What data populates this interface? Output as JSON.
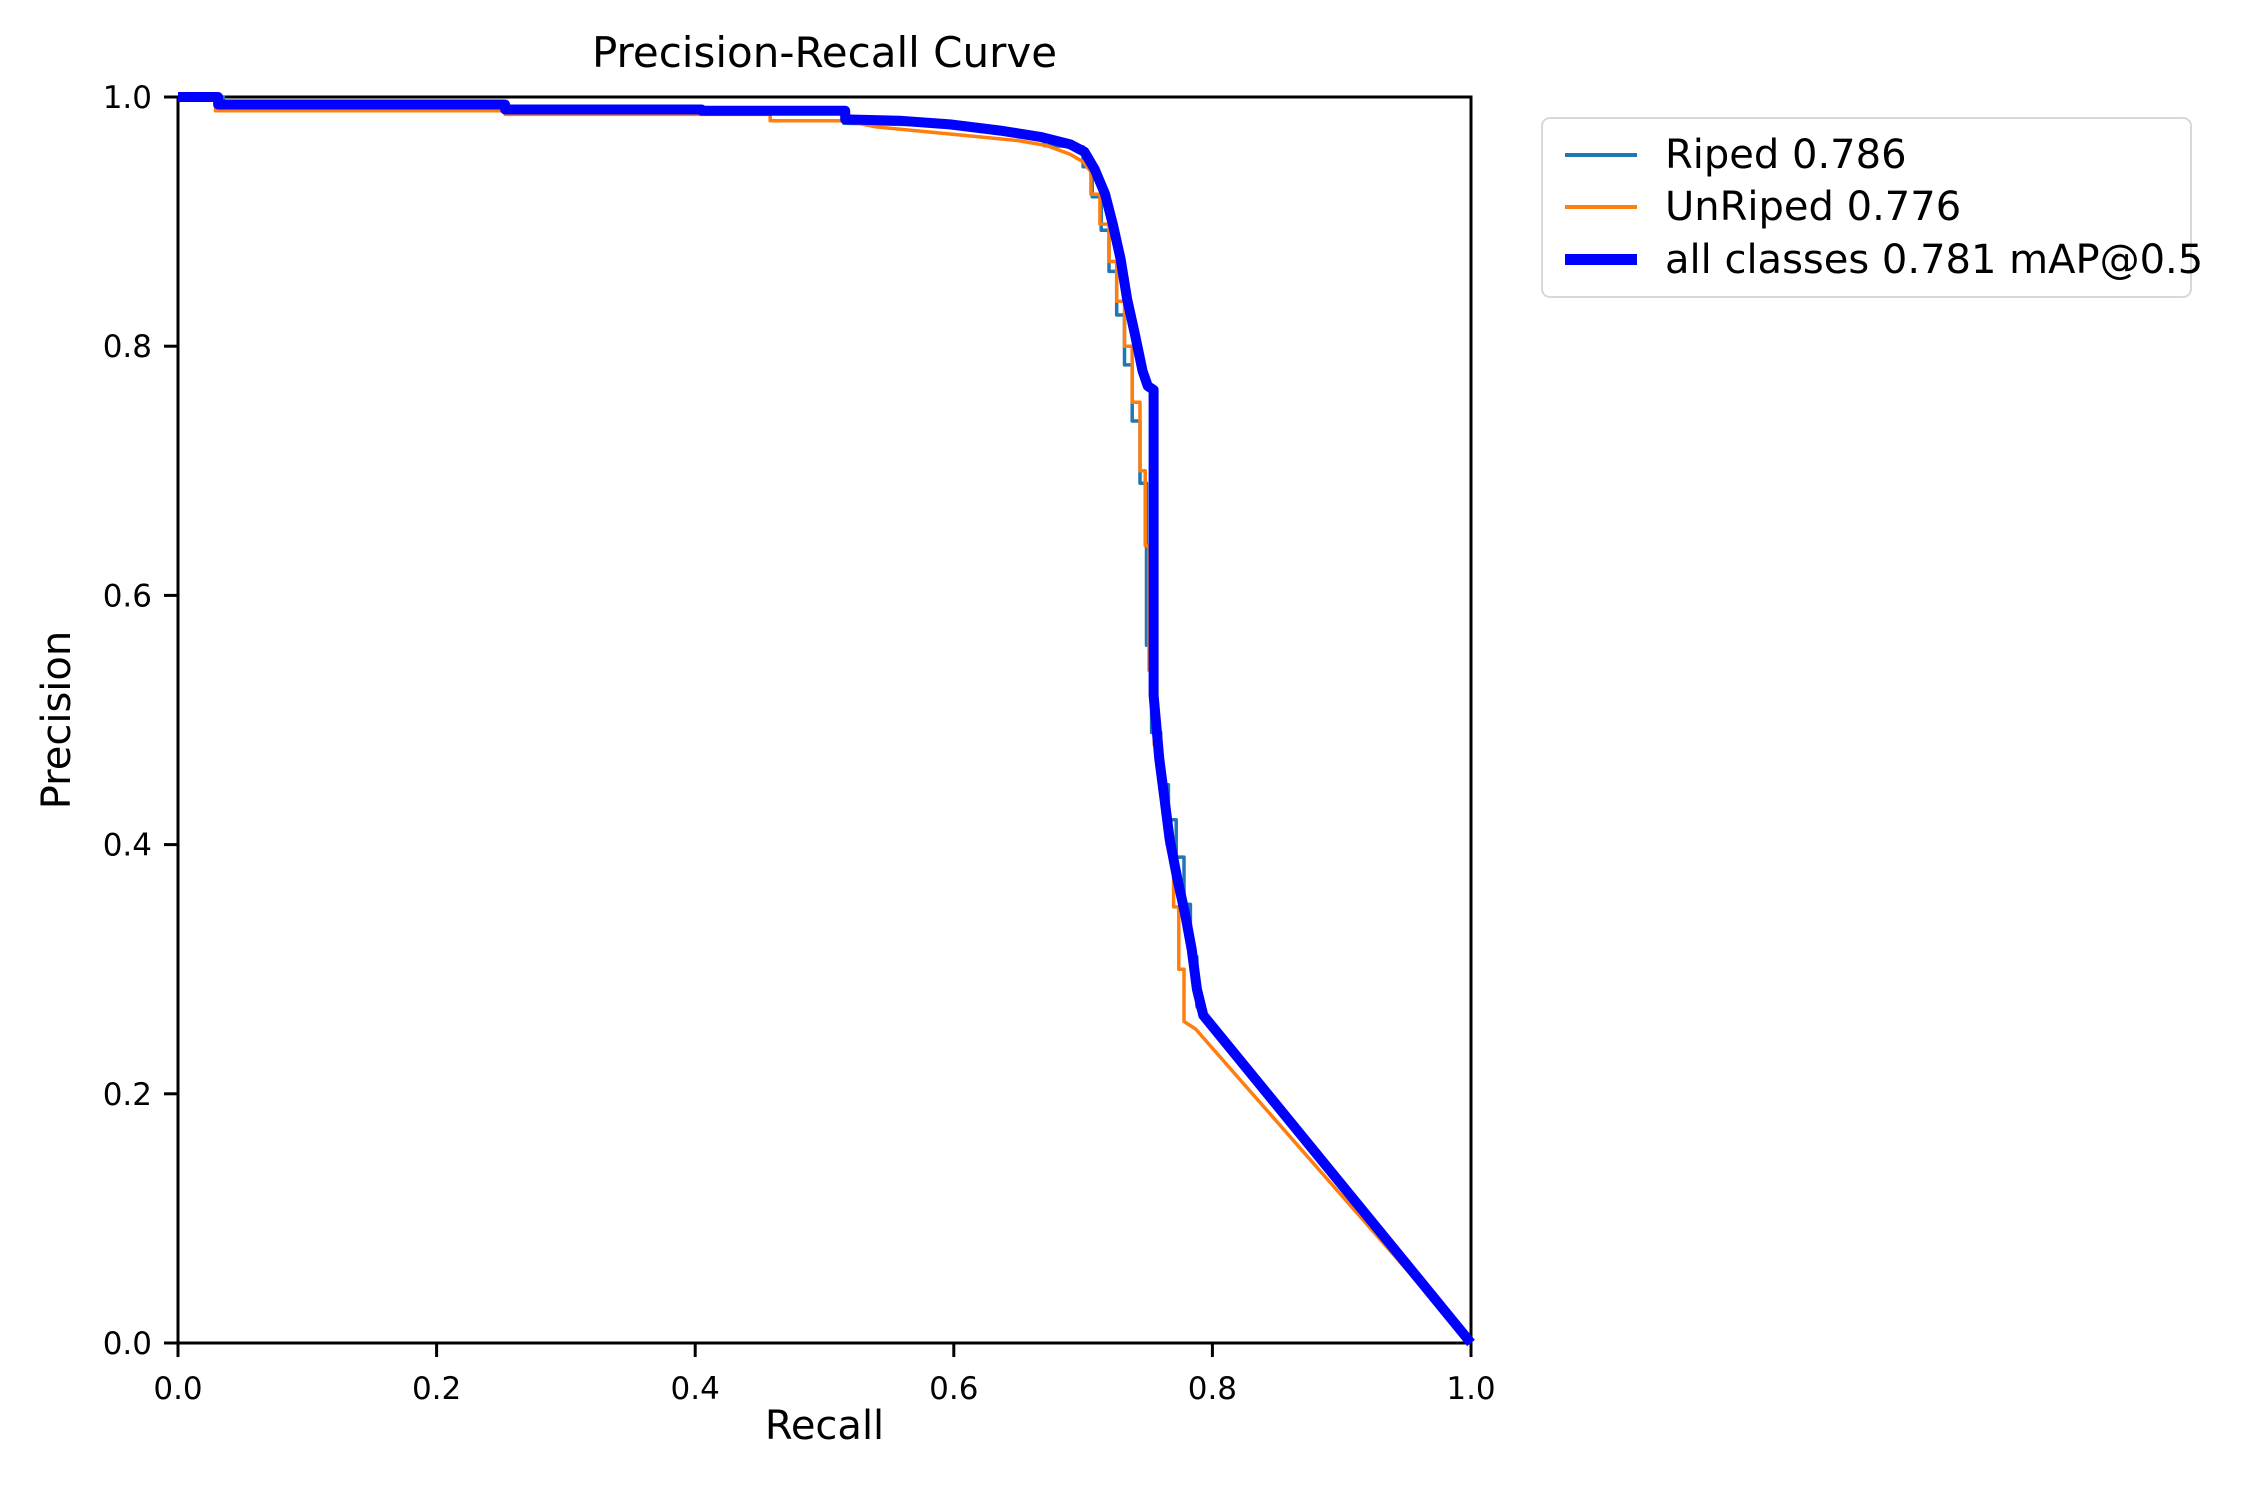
{
  "chart_data": {
    "type": "line",
    "title": "Precision-Recall Curve",
    "xlabel": "Recall",
    "ylabel": "Precision",
    "xlim": [
      0.0,
      1.0
    ],
    "ylim": [
      0.0,
      1.0
    ],
    "grid": false,
    "legend_position": "upper right, outside axes",
    "axis_color": "#000000",
    "xticks": [
      "0.0",
      "0.2",
      "0.4",
      "0.6",
      "0.8",
      "1.0"
    ],
    "yticks": [
      "0.0",
      "0.2",
      "0.4",
      "0.6",
      "0.8",
      "1.0"
    ],
    "legend": {
      "items": [
        {
          "label": "Riped 0.786",
          "color": "#1f77b4",
          "thickness": 4
        },
        {
          "label": "UnRiped 0.776",
          "color": "#ff7f0e",
          "thickness": 4
        },
        {
          "label": "all classes 0.781 mAP@0.5",
          "color": "#0000ff",
          "thickness": 11
        }
      ]
    },
    "series": [
      {
        "id": "riped",
        "name": "Riped",
        "ap": 0.786,
        "color": "#1f77b4",
        "width": 3.5,
        "points": [
          [
            0.0,
            1.0
          ],
          [
            0.035,
            1.0
          ],
          [
            0.035,
            0.993
          ],
          [
            0.253,
            0.993
          ],
          [
            0.253,
            0.991
          ],
          [
            0.46,
            0.991
          ],
          [
            0.46,
            0.989
          ],
          [
            0.515,
            0.989
          ],
          [
            0.515,
            0.979
          ],
          [
            0.56,
            0.978
          ],
          [
            0.6,
            0.977
          ],
          [
            0.636,
            0.972
          ],
          [
            0.67,
            0.969
          ],
          [
            0.67,
            0.961
          ],
          [
            0.7,
            0.96
          ],
          [
            0.7,
            0.944
          ],
          [
            0.707,
            0.944
          ],
          [
            0.707,
            0.92
          ],
          [
            0.714,
            0.92
          ],
          [
            0.714,
            0.893
          ],
          [
            0.72,
            0.893
          ],
          [
            0.72,
            0.86
          ],
          [
            0.726,
            0.86
          ],
          [
            0.726,
            0.825
          ],
          [
            0.732,
            0.825
          ],
          [
            0.732,
            0.785
          ],
          [
            0.738,
            0.785
          ],
          [
            0.738,
            0.74
          ],
          [
            0.744,
            0.74
          ],
          [
            0.744,
            0.69
          ],
          [
            0.749,
            0.69
          ],
          [
            0.749,
            0.56
          ],
          [
            0.753,
            0.56
          ],
          [
            0.753,
            0.49
          ],
          [
            0.76,
            0.49
          ],
          [
            0.76,
            0.448
          ],
          [
            0.766,
            0.448
          ],
          [
            0.766,
            0.42
          ],
          [
            0.772,
            0.42
          ],
          [
            0.772,
            0.39
          ],
          [
            0.778,
            0.39
          ],
          [
            0.778,
            0.352
          ],
          [
            0.783,
            0.352
          ],
          [
            0.783,
            0.31
          ],
          [
            0.788,
            0.31
          ],
          [
            0.788,
            0.27
          ],
          [
            0.793,
            0.263
          ],
          [
            1.0,
            0.0
          ]
        ]
      },
      {
        "id": "unriped",
        "name": "UnRiped",
        "ap": 0.776,
        "color": "#ff7f0e",
        "width": 3.5,
        "points": [
          [
            0.0,
            1.0
          ],
          [
            0.029,
            1.0
          ],
          [
            0.029,
            0.989
          ],
          [
            0.253,
            0.989
          ],
          [
            0.253,
            0.986
          ],
          [
            0.458,
            0.986
          ],
          [
            0.458,
            0.981
          ],
          [
            0.516,
            0.981
          ],
          [
            0.54,
            0.976
          ],
          [
            0.58,
            0.972
          ],
          [
            0.62,
            0.968
          ],
          [
            0.65,
            0.965
          ],
          [
            0.672,
            0.961
          ],
          [
            0.69,
            0.954
          ],
          [
            0.7,
            0.948
          ],
          [
            0.706,
            0.94
          ],
          [
            0.706,
            0.922
          ],
          [
            0.713,
            0.922
          ],
          [
            0.713,
            0.898
          ],
          [
            0.72,
            0.898
          ],
          [
            0.72,
            0.868
          ],
          [
            0.726,
            0.868
          ],
          [
            0.726,
            0.836
          ],
          [
            0.732,
            0.836
          ],
          [
            0.732,
            0.8
          ],
          [
            0.738,
            0.8
          ],
          [
            0.738,
            0.755
          ],
          [
            0.744,
            0.755
          ],
          [
            0.744,
            0.7
          ],
          [
            0.748,
            0.7
          ],
          [
            0.748,
            0.64
          ],
          [
            0.751,
            0.64
          ],
          [
            0.751,
            0.54
          ],
          [
            0.755,
            0.54
          ],
          [
            0.755,
            0.48
          ],
          [
            0.76,
            0.48
          ],
          [
            0.76,
            0.44
          ],
          [
            0.765,
            0.44
          ],
          [
            0.765,
            0.4
          ],
          [
            0.77,
            0.4
          ],
          [
            0.77,
            0.35
          ],
          [
            0.774,
            0.35
          ],
          [
            0.774,
            0.3
          ],
          [
            0.778,
            0.3
          ],
          [
            0.778,
            0.258
          ],
          [
            0.787,
            0.252
          ],
          [
            1.0,
            0.0
          ]
        ]
      },
      {
        "id": "all-classes",
        "name": "all classes",
        "ap": 0.781,
        "map_at": "mAP@0.5",
        "color": "#0000ff",
        "width": 10,
        "points": [
          [
            0.0,
            1.0
          ],
          [
            0.031,
            1.0
          ],
          [
            0.031,
            0.994
          ],
          [
            0.253,
            0.994
          ],
          [
            0.253,
            0.99
          ],
          [
            0.405,
            0.99
          ],
          [
            0.405,
            0.989
          ],
          [
            0.516,
            0.989
          ],
          [
            0.516,
            0.982
          ],
          [
            0.558,
            0.981
          ],
          [
            0.597,
            0.978
          ],
          [
            0.636,
            0.973
          ],
          [
            0.667,
            0.968
          ],
          [
            0.69,
            0.962
          ],
          [
            0.701,
            0.956
          ],
          [
            0.709,
            0.942
          ],
          [
            0.717,
            0.922
          ],
          [
            0.723,
            0.898
          ],
          [
            0.729,
            0.87
          ],
          [
            0.734,
            0.838
          ],
          [
            0.74,
            0.81
          ],
          [
            0.746,
            0.78
          ],
          [
            0.75,
            0.768
          ],
          [
            0.7545,
            0.765
          ],
          [
            0.7545,
            0.52
          ],
          [
            0.759,
            0.468
          ],
          [
            0.763,
            0.436
          ],
          [
            0.767,
            0.404
          ],
          [
            0.773,
            0.372
          ],
          [
            0.779,
            0.344
          ],
          [
            0.784,
            0.316
          ],
          [
            0.788,
            0.284
          ],
          [
            0.793,
            0.263
          ],
          [
            1.0,
            0.0
          ]
        ]
      }
    ]
  }
}
